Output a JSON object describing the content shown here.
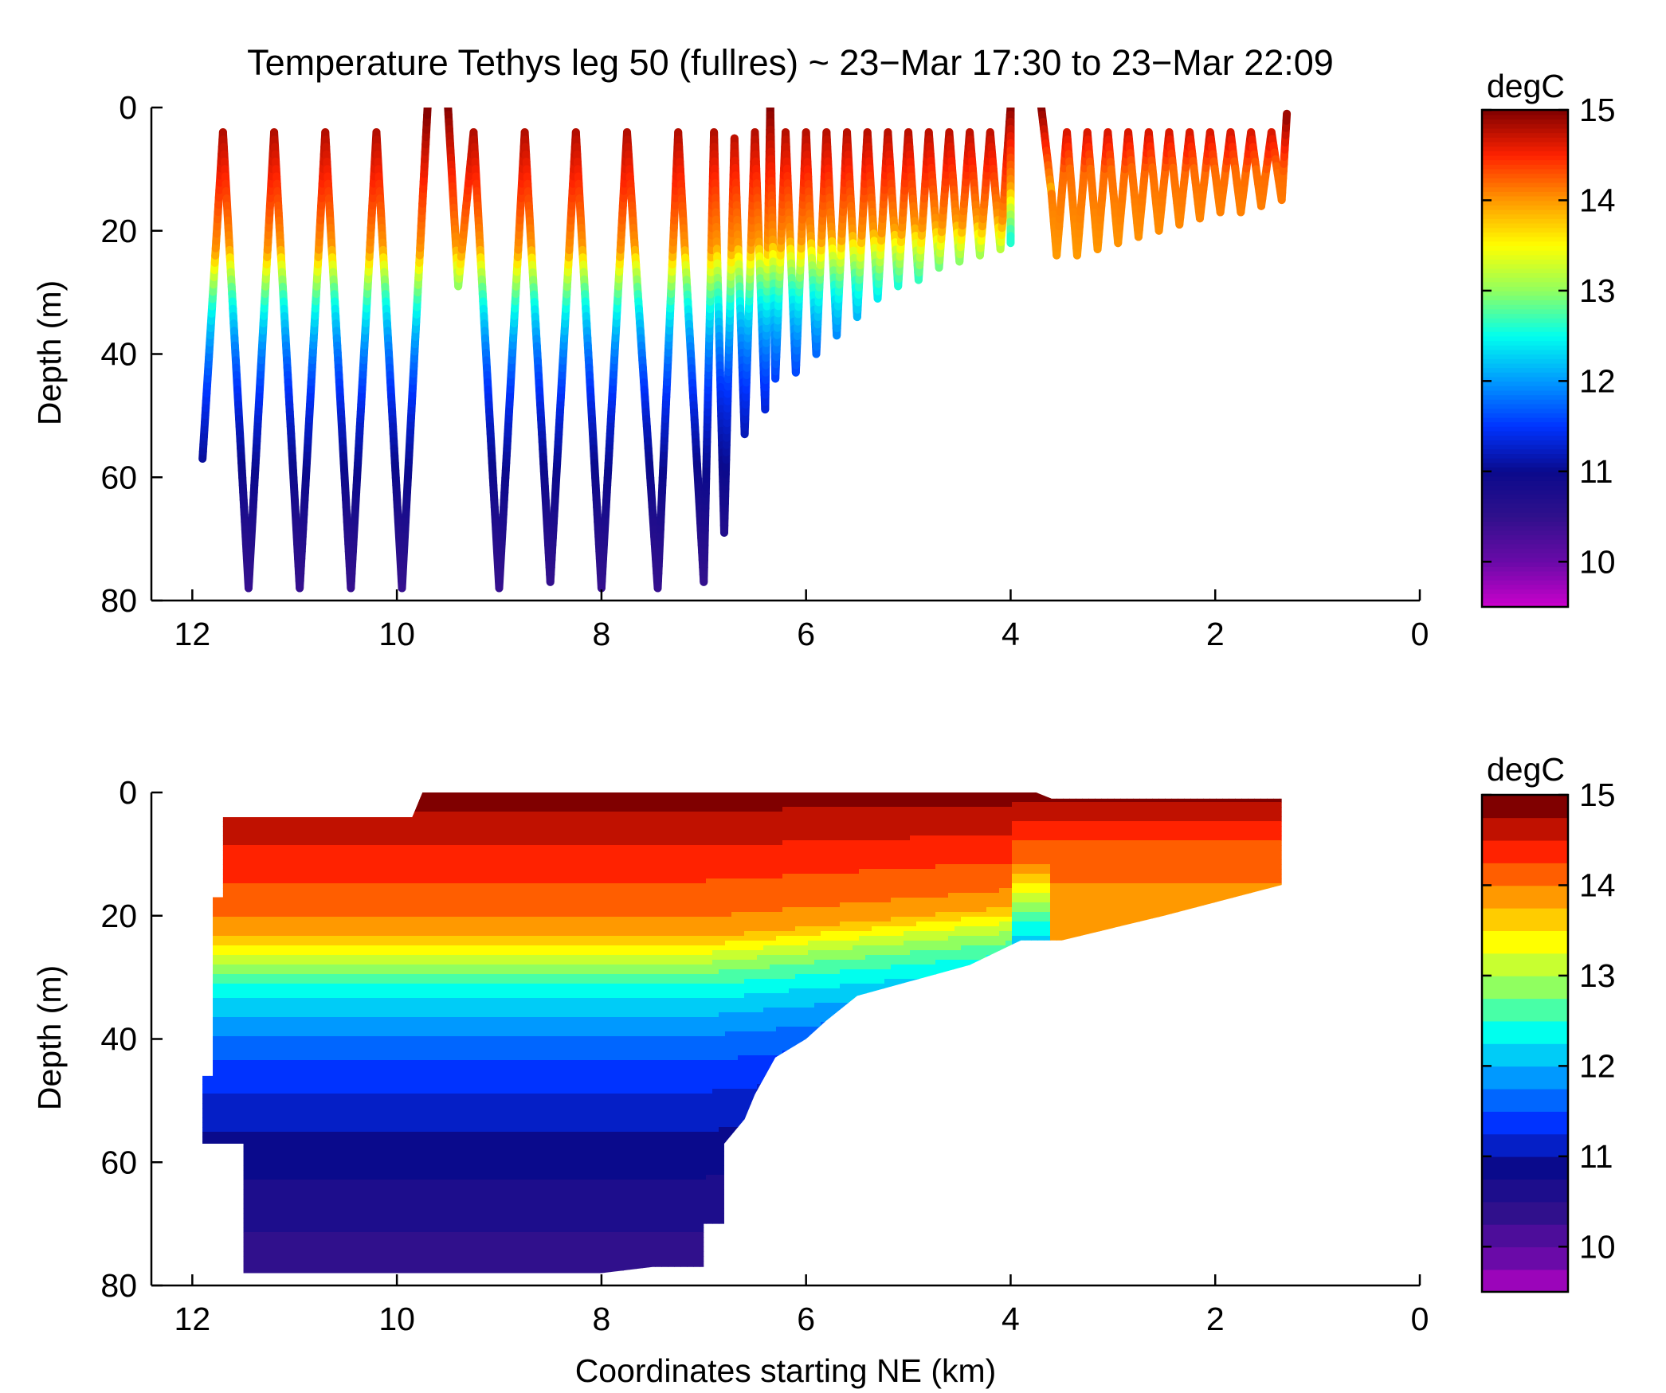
{
  "figure_title": "Temperature Tethys leg 50 (fullres) ~ 23−Mar 17:30 to 23−Mar 22:09",
  "colorbar": {
    "label": "degC",
    "range": [
      9.5,
      15
    ],
    "ticks": [
      "15",
      "14",
      "13",
      "12",
      "11",
      "10"
    ],
    "tick_values": [
      15,
      14,
      13,
      12,
      11,
      10
    ],
    "colormap_stops": [
      {
        "v": 9.5,
        "color": "#cc00cc"
      },
      {
        "v": 10.0,
        "color": "#6a0aa8"
      },
      {
        "v": 10.5,
        "color": "#30108c"
      },
      {
        "v": 11.0,
        "color": "#0a0a8c"
      },
      {
        "v": 11.5,
        "color": "#0033ff"
      },
      {
        "v": 12.0,
        "color": "#0099ff"
      },
      {
        "v": 12.5,
        "color": "#00ffee"
      },
      {
        "v": 13.0,
        "color": "#90ff60"
      },
      {
        "v": 13.5,
        "color": "#ffff00"
      },
      {
        "v": 14.0,
        "color": "#ff9900"
      },
      {
        "v": 14.5,
        "color": "#ff2200"
      },
      {
        "v": 15.0,
        "color": "#800000"
      }
    ]
  },
  "chart_data": [
    {
      "type": "scatter",
      "subtype": "colored-track",
      "xlabel": "",
      "ylabel": "Depth (m)",
      "xlim": [
        12.4,
        0
      ],
      "ylim": [
        80,
        0
      ],
      "xticks": [
        "12",
        "10",
        "8",
        "6",
        "4",
        "2",
        "0"
      ],
      "xtick_values": [
        12,
        10,
        8,
        6,
        4,
        2,
        0
      ],
      "yticks": [
        "0",
        "20",
        "40",
        "60",
        "80"
      ],
      "ytick_values": [
        0,
        20,
        40,
        60,
        80
      ],
      "color_by": "temperature_degC",
      "track_turning_points": [
        [
          11.9,
          57
        ],
        [
          11.7,
          4
        ],
        [
          11.45,
          78
        ],
        [
          11.2,
          4
        ],
        [
          10.95,
          78
        ],
        [
          10.7,
          4
        ],
        [
          10.45,
          78
        ],
        [
          10.2,
          4
        ],
        [
          9.95,
          78
        ],
        [
          9.7,
          0
        ],
        [
          9.5,
          0
        ],
        [
          9.4,
          29
        ],
        [
          9.25,
          4
        ],
        [
          9.0,
          78
        ],
        [
          8.75,
          4
        ],
        [
          8.5,
          77
        ],
        [
          8.25,
          4
        ],
        [
          8.0,
          78
        ],
        [
          7.75,
          4
        ],
        [
          7.45,
          78
        ],
        [
          7.25,
          4
        ],
        [
          7.0,
          77
        ],
        [
          6.9,
          4
        ],
        [
          6.8,
          69
        ],
        [
          6.7,
          5
        ],
        [
          6.6,
          53
        ],
        [
          6.5,
          4
        ],
        [
          6.4,
          49
        ],
        [
          6.35,
          0
        ],
        [
          6.3,
          44
        ],
        [
          6.2,
          4
        ],
        [
          6.1,
          43
        ],
        [
          6.0,
          4
        ],
        [
          5.9,
          40
        ],
        [
          5.8,
          4
        ],
        [
          5.7,
          37
        ],
        [
          5.6,
          4
        ],
        [
          5.5,
          34
        ],
        [
          5.4,
          4
        ],
        [
          5.3,
          31
        ],
        [
          5.2,
          4
        ],
        [
          5.1,
          29
        ],
        [
          5.0,
          4
        ],
        [
          4.9,
          28
        ],
        [
          4.8,
          4
        ],
        [
          4.7,
          26
        ],
        [
          4.6,
          4
        ],
        [
          4.5,
          25
        ],
        [
          4.4,
          4
        ],
        [
          4.3,
          24
        ],
        [
          4.2,
          4
        ],
        [
          4.1,
          23
        ],
        [
          4.0,
          0
        ],
        [
          4.0,
          22
        ],
        [
          3.7,
          0
        ],
        [
          3.6,
          14
        ],
        [
          3.55,
          24
        ],
        [
          3.45,
          4
        ],
        [
          3.35,
          24
        ],
        [
          3.25,
          4
        ],
        [
          3.15,
          23
        ],
        [
          3.05,
          4
        ],
        [
          2.95,
          22
        ],
        [
          2.85,
          4
        ],
        [
          2.75,
          21
        ],
        [
          2.65,
          4
        ],
        [
          2.55,
          20
        ],
        [
          2.45,
          4
        ],
        [
          2.35,
          19
        ],
        [
          2.25,
          4
        ],
        [
          2.15,
          18
        ],
        [
          2.05,
          4
        ],
        [
          1.95,
          17
        ],
        [
          1.85,
          4
        ],
        [
          1.75,
          17
        ],
        [
          1.65,
          4
        ],
        [
          1.55,
          16
        ],
        [
          1.45,
          4
        ],
        [
          1.35,
          15
        ],
        [
          1.3,
          1
        ]
      ],
      "gaps_after_index": [
        9,
        53
      ]
    },
    {
      "type": "heatmap",
      "subtype": "filled-contour",
      "xlabel": "Coordinates starting NE (km)",
      "ylabel": "Depth (m)",
      "xlim": [
        12.4,
        0
      ],
      "ylim": [
        80,
        0
      ],
      "xticks": [
        "12",
        "10",
        "8",
        "6",
        "4",
        "2",
        "0"
      ],
      "xtick_values": [
        12,
        10,
        8,
        6,
        4,
        2,
        0
      ],
      "yticks": [
        "0",
        "20",
        "40",
        "60",
        "80"
      ],
      "ytick_values": [
        0,
        20,
        40,
        60,
        80
      ],
      "contour_levels_step": 0.25,
      "data_extent_outline": [
        [
          11.7,
          4
        ],
        [
          9.85,
          4
        ],
        [
          9.75,
          0
        ],
        [
          3.75,
          0
        ],
        [
          3.6,
          1
        ],
        [
          1.35,
          1
        ],
        [
          1.35,
          15
        ],
        [
          2.5,
          20
        ],
        [
          3.5,
          24
        ],
        [
          3.9,
          24
        ],
        [
          4.4,
          28
        ],
        [
          5.5,
          33
        ],
        [
          5.8,
          37
        ],
        [
          6.0,
          40
        ],
        [
          6.3,
          43
        ],
        [
          6.5,
          49
        ],
        [
          6.6,
          53
        ],
        [
          6.8,
          57
        ],
        [
          6.8,
          70
        ],
        [
          7.0,
          70
        ],
        [
          7.0,
          77
        ],
        [
          7.5,
          77
        ],
        [
          8.0,
          78
        ],
        [
          11.5,
          78
        ],
        [
          11.5,
          57
        ],
        [
          11.9,
          57
        ],
        [
          11.9,
          46
        ],
        [
          11.8,
          46
        ],
        [
          11.8,
          17
        ],
        [
          11.7,
          17
        ]
      ]
    }
  ]
}
